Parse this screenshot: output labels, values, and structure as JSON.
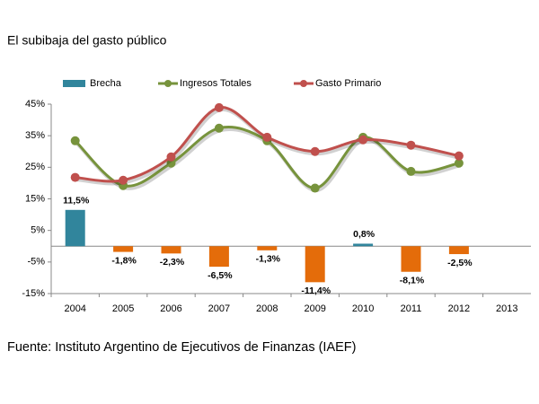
{
  "chart_data": {
    "type": "bar-line",
    "title": "El subibaja del gasto público",
    "source": "Fuente: Instituto Argentino de Ejecutivos de Finanzas (IAEF)",
    "categories": [
      "2004",
      "2005",
      "2006",
      "2007",
      "2008",
      "2009",
      "2010",
      "2011",
      "2012",
      "2013"
    ],
    "ylim": [
      -15,
      45
    ],
    "yticks": [
      {
        "value": -15,
        "label": "-15%"
      },
      {
        "value": -5,
        "label": "-5%"
      },
      {
        "value": 5,
        "label": "5%"
      },
      {
        "value": 15,
        "label": "15%"
      },
      {
        "value": 25,
        "label": "25%"
      },
      {
        "value": 35,
        "label": "35%"
      },
      {
        "value": 45,
        "label": "45%"
      }
    ],
    "series": [
      {
        "name": "Brecha",
        "type": "bar",
        "color": "#31859c",
        "negative_color": "#e46c0a",
        "values": [
          11.5,
          -1.8,
          -2.3,
          -6.5,
          -1.3,
          -11.4,
          0.8,
          -8.1,
          -2.5,
          null
        ],
        "value_labels": [
          "11,5%",
          "-1,8%",
          "-2,3%",
          "-6,5%",
          "-1,3%",
          "-11,4%",
          "0,8%",
          "-8,1%",
          "-2,5%",
          null
        ]
      },
      {
        "name": "Ingresos Totales",
        "type": "line",
        "color": "#77933c",
        "values": [
          33.4,
          19.2,
          26.3,
          37.4,
          33.4,
          18.4,
          34.5,
          23.7,
          26.3,
          null
        ]
      },
      {
        "name": "Gasto Primario",
        "type": "line",
        "color": "#c0504d",
        "values": [
          21.8,
          20.9,
          28.3,
          43.9,
          34.5,
          30.0,
          33.7,
          32.0,
          28.6,
          null
        ]
      }
    ]
  }
}
